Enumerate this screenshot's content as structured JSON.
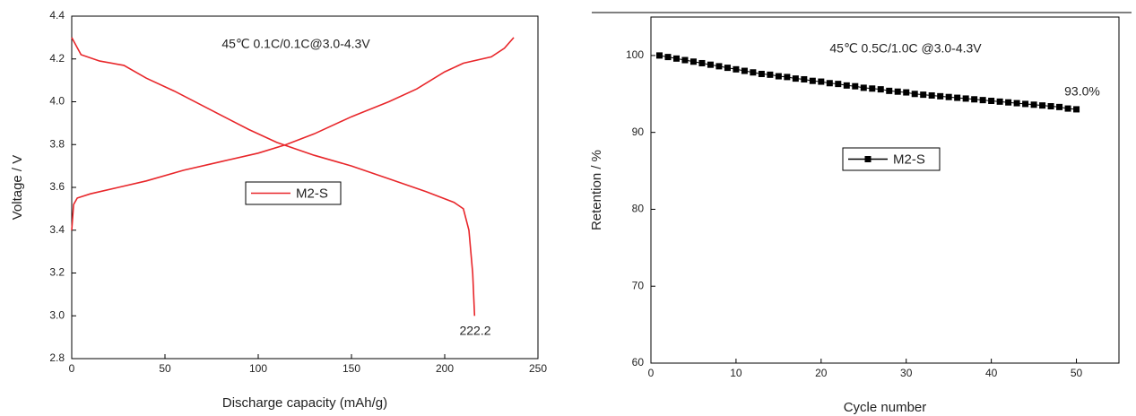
{
  "chart_data": [
    {
      "type": "line",
      "x_label": "Discharge capacity (mAh/g)",
      "y_label": "Voltage / V",
      "annotations": [
        "45℃ 0.1C/0.1C@3.0-4.3V",
        "222.2"
      ],
      "xlim": [
        0,
        250
      ],
      "xticks": [
        0,
        50,
        100,
        150,
        200,
        250
      ],
      "ylim": [
        2.8,
        4.4
      ],
      "yticks": [
        2.8,
        {
          "value": 3,
          "label": "3.0"
        },
        3.2,
        3.4,
        3.6,
        3.8,
        {
          "value": 4,
          "label": "4.0"
        },
        4.2,
        4.4
      ],
      "series": [
        {
          "name": "M2-S",
          "color": "#e8262a",
          "x": [
            0,
            1,
            3,
            10,
            25,
            40,
            60,
            80,
            100,
            115,
            130,
            150,
            170,
            185,
            200,
            210,
            225,
            232,
            237
          ],
          "values": [
            3.4,
            3.52,
            3.55,
            3.57,
            3.6,
            3.63,
            3.68,
            3.72,
            3.76,
            3.8,
            3.85,
            3.93,
            4.0,
            4.06,
            4.14,
            4.18,
            4.21,
            4.25,
            4.3
          ]
        },
        {
          "color": "#e8262a",
          "x": [
            0,
            5,
            15,
            28,
            40,
            55,
            75,
            95,
            110,
            130,
            150,
            170,
            190,
            205,
            210,
            213,
            215,
            216
          ],
          "values": [
            4.3,
            4.22,
            4.19,
            4.17,
            4.11,
            4.05,
            3.96,
            3.87,
            3.81,
            3.75,
            3.7,
            3.64,
            3.58,
            3.53,
            3.5,
            3.4,
            3.2,
            3.0
          ]
        }
      ]
    },
    {
      "type": "line",
      "marker": "square",
      "x_label": "Cycle number",
      "y_label": "Retention / %",
      "annotations": [
        "45℃ 0.5C/1.0C @3.0-4.3V",
        "93.0%"
      ],
      "xlim": [
        0,
        55
      ],
      "xticks": [
        0,
        10,
        20,
        30,
        40,
        50
      ],
      "ylim": [
        60,
        105
      ],
      "yticks": [
        60,
        70,
        80,
        90,
        100
      ],
      "series": [
        {
          "name": "M2-S",
          "color": "#000000",
          "x": [
            1,
            2,
            3,
            4,
            5,
            6,
            7,
            8,
            9,
            10,
            11,
            12,
            13,
            14,
            15,
            16,
            17,
            18,
            19,
            20,
            21,
            22,
            23,
            24,
            25,
            26,
            27,
            28,
            29,
            30,
            31,
            32,
            33,
            34,
            35,
            36,
            37,
            38,
            39,
            40,
            41,
            42,
            43,
            44,
            45,
            46,
            47,
            48,
            49,
            50
          ],
          "values": [
            100.0,
            99.8,
            99.6,
            99.4,
            99.2,
            99.0,
            98.8,
            98.6,
            98.4,
            98.2,
            98.0,
            97.8,
            97.6,
            97.5,
            97.3,
            97.2,
            97.0,
            96.9,
            96.7,
            96.6,
            96.4,
            96.3,
            96.1,
            96.0,
            95.8,
            95.7,
            95.6,
            95.4,
            95.3,
            95.2,
            95.0,
            94.9,
            94.8,
            94.7,
            94.6,
            94.5,
            94.4,
            94.3,
            94.2,
            94.1,
            94.0,
            93.9,
            93.8,
            93.7,
            93.6,
            93.5,
            93.4,
            93.3,
            93.1,
            93.0
          ]
        }
      ]
    }
  ]
}
